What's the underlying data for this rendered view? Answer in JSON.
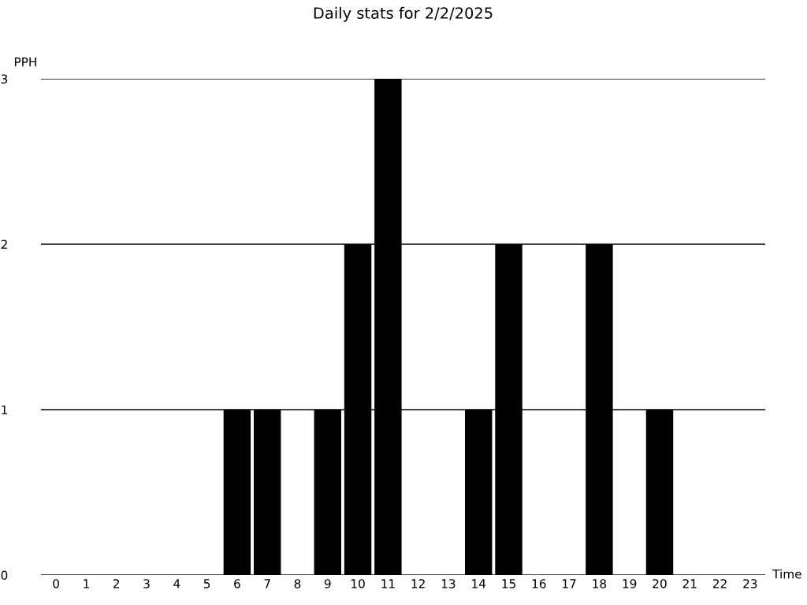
{
  "chart_data": {
    "type": "bar",
    "title": "Daily stats for 2/2/2025",
    "xlabel": "Time",
    "ylabel": "PPH",
    "categories": [
      "0",
      "1",
      "2",
      "3",
      "4",
      "5",
      "6",
      "7",
      "8",
      "9",
      "10",
      "11",
      "12",
      "13",
      "14",
      "15",
      "16",
      "17",
      "18",
      "19",
      "20",
      "21",
      "22",
      "23"
    ],
    "values": [
      0,
      0,
      0,
      0,
      0,
      0,
      1,
      1,
      0,
      1,
      2,
      3,
      0,
      0,
      1,
      2,
      0,
      0,
      2,
      0,
      1,
      0,
      0,
      0
    ],
    "color": "#000000",
    "ylim": [
      0,
      3
    ],
    "yticks": [
      0,
      1,
      2,
      3
    ],
    "grid": "y",
    "legend": false
  }
}
